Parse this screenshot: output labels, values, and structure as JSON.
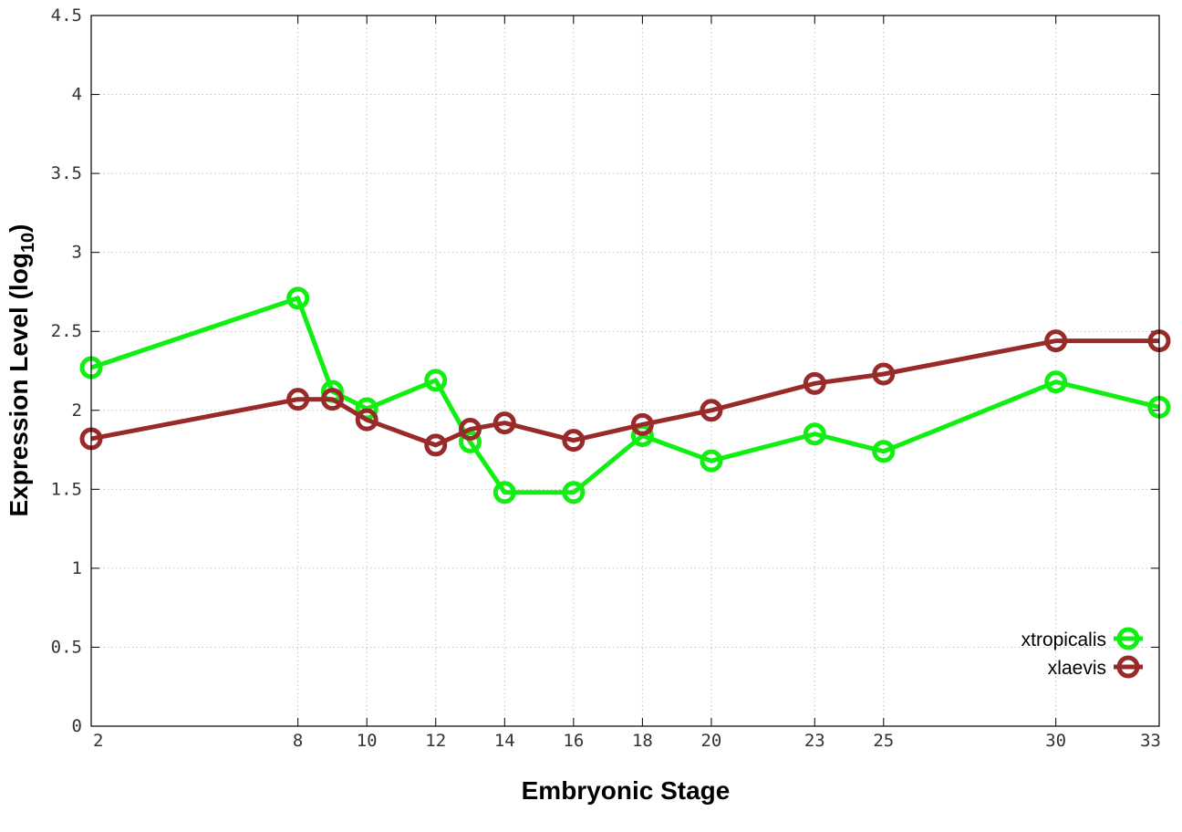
{
  "chart_data": {
    "type": "line",
    "xlabel": "Embryonic Stage",
    "ylabel_main": "Expression Level (log",
    "ylabel_sub": "10",
    "ylabel_close": ")",
    "x": [
      2,
      8,
      9,
      10,
      12,
      13,
      14,
      16,
      18,
      20,
      23,
      25,
      30,
      33
    ],
    "x_ticks": [
      2,
      8,
      10,
      12,
      14,
      16,
      18,
      20,
      23,
      25,
      30,
      33
    ],
    "y_ticks": [
      "0",
      "0.5",
      "1",
      "1.5",
      "2",
      "2.5",
      "3",
      "3.5",
      "4",
      "4.5"
    ],
    "xlim": [
      2,
      33
    ],
    "ylim": [
      0,
      4.5
    ],
    "grid": true,
    "legend_position": "bottom-right",
    "series": [
      {
        "name": "xtropicalis",
        "color": "#11ee11",
        "values": [
          2.27,
          2.71,
          2.12,
          2.01,
          2.19,
          1.8,
          1.48,
          1.48,
          1.84,
          1.68,
          1.85,
          1.74,
          2.18,
          2.02
        ]
      },
      {
        "name": "xlaevis",
        "color": "#992a2a",
        "values": [
          1.82,
          2.07,
          2.07,
          1.94,
          1.78,
          1.88,
          1.92,
          1.81,
          1.91,
          2.0,
          2.17,
          2.23,
          2.44,
          2.44
        ]
      }
    ]
  }
}
